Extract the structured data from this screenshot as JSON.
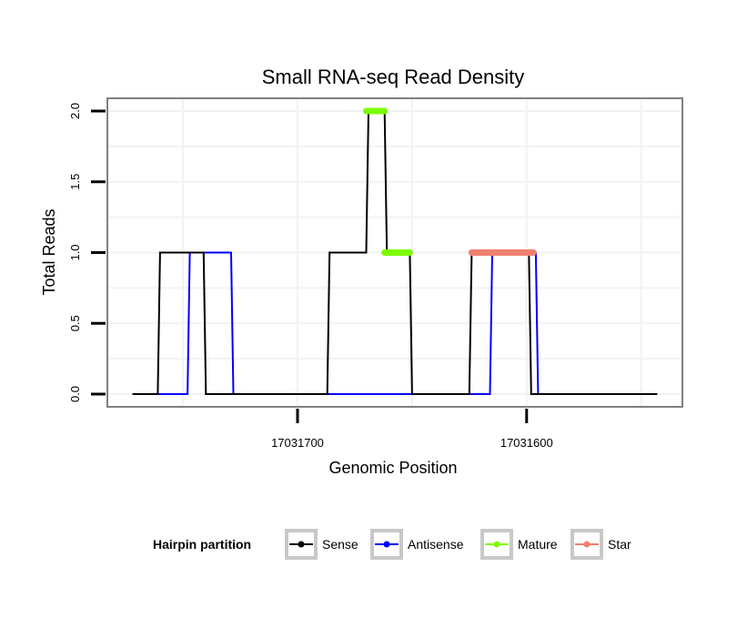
{
  "chart_data": {
    "type": "line",
    "title": "Small RNA-seq Read Density",
    "xlabel": "Genomic Position",
    "ylabel": "Total Reads",
    "x_reversed": true,
    "xlim": [
      17031783,
      17031532
    ],
    "ylim": [
      -0.09,
      2.09
    ],
    "xticks": [
      17031700,
      17031600
    ],
    "xtick_labels": [
      "17031700",
      "17031600"
    ],
    "yticks": [
      0.0,
      0.5,
      1.0,
      1.5,
      2.0
    ],
    "ytick_labels": [
      "0.0",
      "0.5",
      "1.0",
      "1.5",
      "2.0"
    ],
    "grid": true,
    "colors": {
      "Sense": "#000000",
      "Antisense": "#0000ff",
      "Mature": "#7cfc00",
      "Star": "#f08070",
      "panel_border": "#808080",
      "grid": "#f2f2f2",
      "legend_box": "#c8c8c8"
    },
    "series": [
      {
        "name": "Sense",
        "points": [
          [
            17031772,
            0
          ],
          [
            17031761,
            0
          ],
          [
            17031760,
            1
          ],
          [
            17031741,
            1
          ],
          [
            17031740,
            0
          ],
          [
            17031687,
            0
          ],
          [
            17031686,
            1
          ],
          [
            17031670,
            1
          ],
          [
            17031669,
            2
          ],
          [
            17031662,
            2
          ],
          [
            17031661,
            1
          ],
          [
            17031651,
            1
          ],
          [
            17031650,
            0
          ],
          [
            17031625,
            0
          ],
          [
            17031624,
            1
          ],
          [
            17031599,
            1
          ],
          [
            17031598,
            0
          ],
          [
            17031543,
            0
          ]
        ]
      },
      {
        "name": "Antisense",
        "points": [
          [
            17031772,
            0
          ],
          [
            17031748,
            0
          ],
          [
            17031747,
            1
          ],
          [
            17031729,
            1
          ],
          [
            17031728,
            0
          ],
          [
            17031616,
            0
          ],
          [
            17031615,
            1
          ],
          [
            17031596,
            1
          ],
          [
            17031595,
            0
          ],
          [
            17031543,
            0
          ]
        ]
      },
      {
        "name": "Mature",
        "segments": [
          {
            "x": [
              17031670,
              17031662
            ],
            "y": 2
          },
          {
            "x": [
              17031662,
              17031651
            ],
            "y": 1
          }
        ]
      },
      {
        "name": "Star",
        "segments": [
          {
            "x": [
              17031624,
              17031597
            ],
            "y": 1
          }
        ]
      }
    ],
    "legend": {
      "title": "Hairpin partition",
      "position": "bottom",
      "entries": [
        "Sense",
        "Antisense",
        "Mature",
        "Star"
      ]
    }
  }
}
